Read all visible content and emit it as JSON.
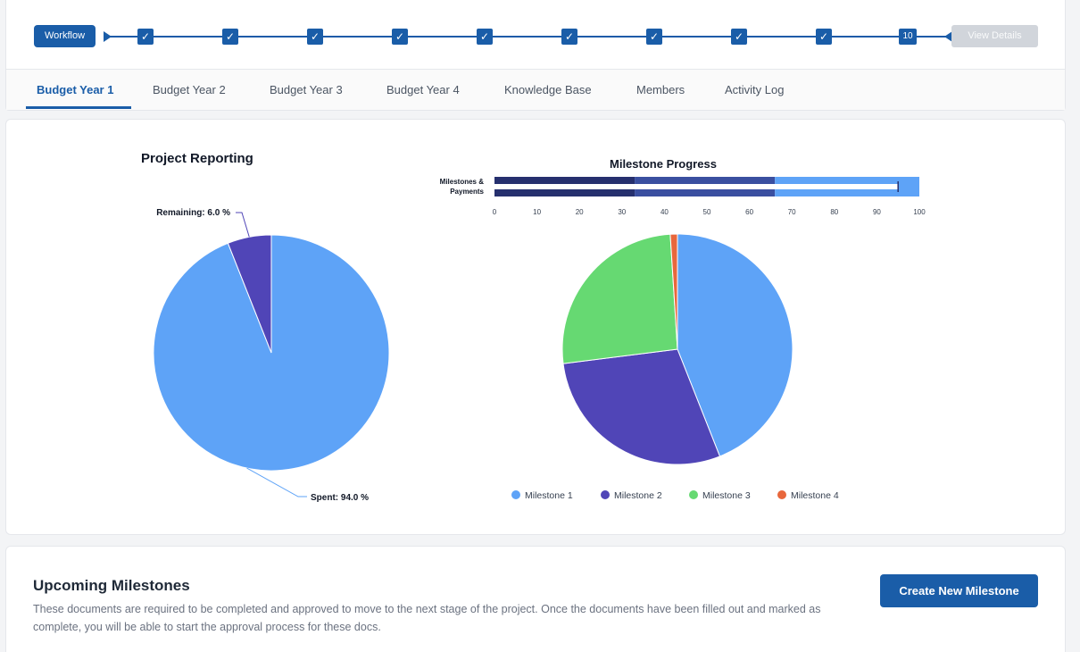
{
  "workflow": {
    "label": "Workflow",
    "steps": [
      "✓",
      "✓",
      "✓",
      "✓",
      "✓",
      "✓",
      "✓",
      "✓",
      "✓",
      "10"
    ],
    "view_details": "View Details",
    "accent": "#1a5da8"
  },
  "tabs": [
    {
      "label": "Budget Year 1",
      "active": true
    },
    {
      "label": "Budget Year 2",
      "active": false
    },
    {
      "label": "Budget Year 3",
      "active": false
    },
    {
      "label": "Budget Year 4",
      "active": false
    },
    {
      "label": "Knowledge Base",
      "active": false
    },
    {
      "label": "Members",
      "active": false
    },
    {
      "label": "Activity Log",
      "active": false
    }
  ],
  "chart_data": [
    {
      "type": "pie",
      "title": "Project Reporting",
      "categories": [
        "Spent",
        "Remaining"
      ],
      "values": [
        94.0,
        6.0
      ],
      "labels": [
        "Spent: 94.0 %",
        "Remaining: 6.0 %"
      ],
      "colors": [
        "#5ea3f7",
        "#5045b7"
      ]
    },
    {
      "type": "bar",
      "title": "Milestone Progress",
      "orientation": "horizontal",
      "stacked": true,
      "category_label": "Milestones & Payments",
      "xlim": [
        0,
        100
      ],
      "ticks": [
        0,
        10,
        20,
        30,
        40,
        50,
        60,
        70,
        80,
        90,
        100
      ],
      "segments": [
        {
          "from": 0,
          "to": 33
        },
        {
          "from": 33,
          "to": 66
        },
        {
          "from": 66,
          "to": 100
        }
      ],
      "marker": 95,
      "colors": [
        "#26306e",
        "#3a4fa0",
        "#5ea3f7"
      ]
    },
    {
      "type": "pie",
      "categories": [
        "Milestone 1",
        "Milestone 2",
        "Milestone 3",
        "Milestone 4"
      ],
      "values": [
        44,
        29,
        26,
        1
      ],
      "colors": [
        "#5ea3f7",
        "#5045b7",
        "#66d972",
        "#e8673c"
      ],
      "legend": "bottom"
    }
  ],
  "upcoming": {
    "title": "Upcoming Milestones",
    "description": "These documents are required to be completed and approved to move to the next stage of the project. Once the documents have been filled out and marked as complete, you will be able to start the approval process for these docs.",
    "create_button": "Create New Milestone"
  }
}
